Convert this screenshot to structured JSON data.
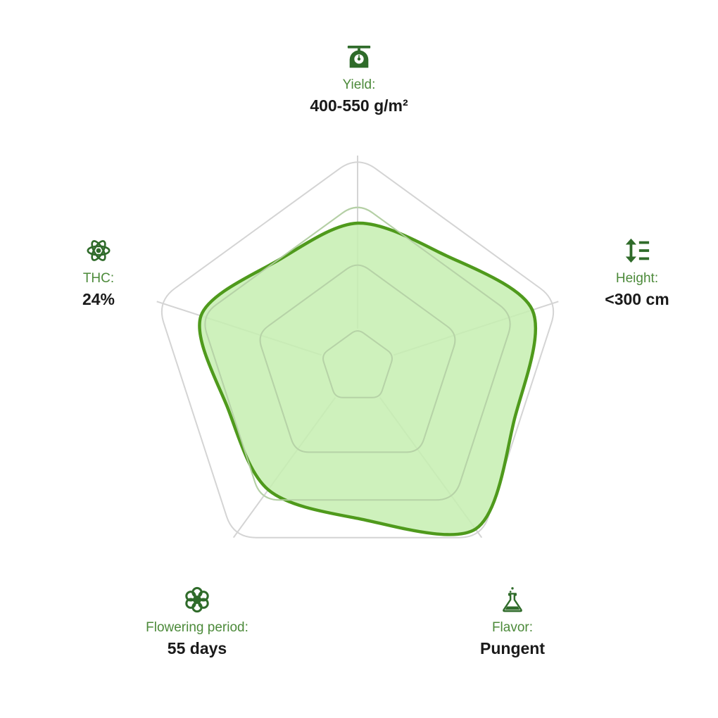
{
  "chart_data": {
    "type": "radar",
    "axes": [
      {
        "id": "yield",
        "label": "Yield:",
        "value_text": "400-550 g/m²",
        "icon": "scale-icon"
      },
      {
        "id": "height",
        "label": "Height:",
        "value_text": "<300 cm",
        "icon": "height-arrows-icon"
      },
      {
        "id": "flavor",
        "label": "Flavor:",
        "value_text": "Pungent",
        "icon": "flask-icon"
      },
      {
        "id": "flowering",
        "label": "Flowering period:",
        "value_text": "55 days",
        "icon": "flower-icon"
      },
      {
        "id": "thc",
        "label": "THC:",
        "value_text": "24%",
        "icon": "atom-icon"
      }
    ],
    "grid_levels": [
      0.18,
      0.5,
      0.78,
      1.0
    ],
    "values": [
      0.68,
      0.87,
      0.95,
      0.72,
      0.78
    ],
    "scale_max": 1.0,
    "grid": true
  },
  "colors": {
    "accent": "#4c8a3a",
    "icon": "#2f6b2a",
    "fill": "#c5efb0",
    "stroke": "#4f9a1c",
    "outer_grid": "#d4d4d4",
    "inner_grid": "#b5cfa6",
    "value_text": "#1a1a1a"
  }
}
